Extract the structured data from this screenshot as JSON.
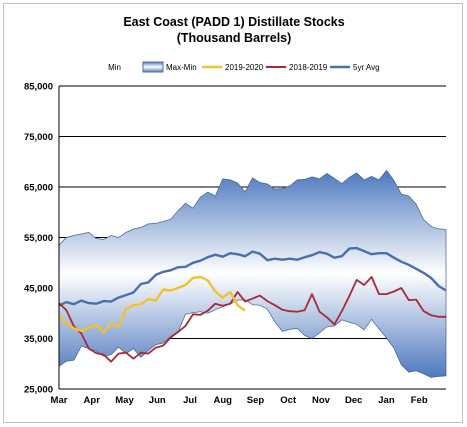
{
  "chart_data": {
    "type": "line",
    "title": "East Coast (PADD 1) Distillate Stocks",
    "subtitle": "(Thousand Barrels)",
    "xlabel": "",
    "ylabel": "",
    "ylim": [
      25000,
      85000
    ],
    "yticks": [
      25000,
      35000,
      45000,
      55000,
      65000,
      75000,
      85000
    ],
    "ytick_labels": [
      "25,000",
      "35,000",
      "45,000",
      "55,000",
      "65,000",
      "75,000",
      "85,000"
    ],
    "x_unit": "week",
    "xlim": [
      0,
      52
    ],
    "xticks": [
      {
        "label": "Mar",
        "x": 0
      },
      {
        "label": "Apr",
        "x": 4.4
      },
      {
        "label": "May",
        "x": 8.8
      },
      {
        "label": "Jun",
        "x": 13.2
      },
      {
        "label": "Jul",
        "x": 17.6
      },
      {
        "label": "Aug",
        "x": 22
      },
      {
        "label": "Sep",
        "x": 26.4
      },
      {
        "label": "Oct",
        "x": 30.8
      },
      {
        "label": "Nov",
        "x": 35.2
      },
      {
        "label": "Dec",
        "x": 39.6
      },
      {
        "label": "Jan",
        "x": 44
      },
      {
        "label": "Feb",
        "x": 48.4
      }
    ],
    "grid": "horizontal",
    "legend": "top",
    "band": {
      "label_min": "Min",
      "label_range": "Max-Min",
      "x": [
        0,
        1,
        2,
        3,
        4,
        5,
        6,
        7,
        8,
        9,
        10,
        11,
        12,
        13,
        14,
        15,
        16,
        17,
        18,
        19,
        20,
        21,
        22,
        23,
        24,
        25,
        26,
        27,
        28,
        29,
        30,
        31,
        32,
        33,
        34,
        35,
        36,
        37,
        38,
        39,
        40,
        41,
        42,
        43,
        44,
        45,
        46,
        47,
        48,
        49,
        50,
        51,
        52
      ],
      "max": [
        53500,
        55000,
        55400,
        55700,
        56000,
        54800,
        54600,
        55400,
        55000,
        56000,
        56700,
        57000,
        57700,
        57800,
        58200,
        58600,
        60300,
        61800,
        60800,
        63000,
        64000,
        63200,
        66600,
        66400,
        65800,
        64000,
        66800,
        65900,
        65600,
        64600,
        64700,
        65200,
        66400,
        66500,
        67000,
        66600,
        67700,
        66700,
        65700,
        66900,
        67800,
        66400,
        67100,
        66400,
        68300,
        66300,
        63600,
        63200,
        61600,
        58500,
        57200,
        56700,
        56600
      ],
      "min": [
        29500,
        30500,
        30700,
        33500,
        33000,
        32500,
        31500,
        31800,
        33300,
        32000,
        33000,
        31300,
        32600,
        33800,
        34100,
        35400,
        36300,
        39800,
        40100,
        40300,
        40000,
        40700,
        41300,
        41800,
        42600,
        42700,
        41700,
        41600,
        40800,
        38300,
        36400,
        36800,
        37000,
        35600,
        35000,
        36100,
        37300,
        37500,
        38700,
        38200,
        37800,
        36700,
        38800,
        36900,
        35100,
        33100,
        29800,
        28300,
        28600,
        28000,
        27300,
        27500,
        27600
      ]
    },
    "series": [
      {
        "name": "5yr Avg",
        "color": "#4a6fae",
        "x": [
          0,
          1,
          2,
          3,
          4,
          5,
          6,
          7,
          8,
          9,
          10,
          11,
          12,
          13,
          14,
          15,
          16,
          17,
          18,
          19,
          20,
          21,
          22,
          23,
          24,
          25,
          26,
          27,
          28,
          29,
          30,
          31,
          32,
          33,
          34,
          35,
          36,
          37,
          38,
          39,
          40,
          41,
          42,
          43,
          44,
          45,
          46,
          47,
          48,
          49,
          50,
          51,
          52
        ],
        "values": [
          41500,
          42200,
          41800,
          42500,
          42000,
          41900,
          42400,
          42300,
          43100,
          43600,
          44100,
          45800,
          46100,
          47600,
          48200,
          48500,
          49100,
          49200,
          50000,
          50400,
          51100,
          51600,
          51200,
          51900,
          51700,
          51300,
          52200,
          51800,
          50500,
          50800,
          50600,
          50800,
          50600,
          51100,
          51500,
          52100,
          51800,
          51000,
          51300,
          52800,
          52900,
          52300,
          51700,
          51900,
          51900,
          51000,
          50200,
          49600,
          48800,
          48000,
          47000,
          45400,
          44500
        ]
      },
      {
        "name": "2018-2019",
        "color": "#a62b36",
        "x": [
          0,
          1,
          2,
          3,
          4,
          5,
          6,
          7,
          8,
          9,
          10,
          11,
          12,
          13,
          14,
          15,
          16,
          17,
          18,
          19,
          20,
          21,
          22,
          23,
          24,
          25,
          26,
          27,
          28,
          29,
          30,
          31,
          32,
          33,
          34,
          35,
          36,
          37,
          38,
          39,
          40,
          41,
          42,
          43,
          44,
          45,
          46,
          47,
          48,
          49,
          50,
          51,
          52
        ],
        "values": [
          42000,
          40600,
          37400,
          36000,
          33000,
          32100,
          31800,
          30400,
          32000,
          32200,
          31000,
          32200,
          32000,
          33200,
          33600,
          35200,
          36300,
          37500,
          39800,
          39700,
          40500,
          41900,
          41500,
          41900,
          44200,
          42300,
          42900,
          43500,
          42400,
          41600,
          40700,
          40400,
          40300,
          40600,
          43800,
          40300,
          39200,
          37800,
          40400,
          43400,
          46600,
          45600,
          47200,
          43800,
          43800,
          44300,
          45000,
          42600,
          42700,
          40400,
          39600,
          39300,
          39300
        ]
      },
      {
        "name": "2019-2020",
        "color": "#f2c12e",
        "x": [
          0,
          1,
          2,
          3,
          4,
          5,
          6,
          7,
          8,
          9,
          10,
          11,
          12,
          13,
          14,
          15,
          16,
          17,
          18,
          19,
          20,
          21,
          22,
          23,
          24,
          25,
          26
        ],
        "values": [
          39600,
          38000,
          37000,
          36500,
          37100,
          37700,
          36200,
          38000,
          37300,
          40800,
          41600,
          41800,
          42800,
          42500,
          44700,
          44500,
          45000,
          45600,
          47000,
          47200,
          46500,
          44300,
          43100,
          44200,
          41600,
          40500,
          null
        ]
      }
    ]
  }
}
